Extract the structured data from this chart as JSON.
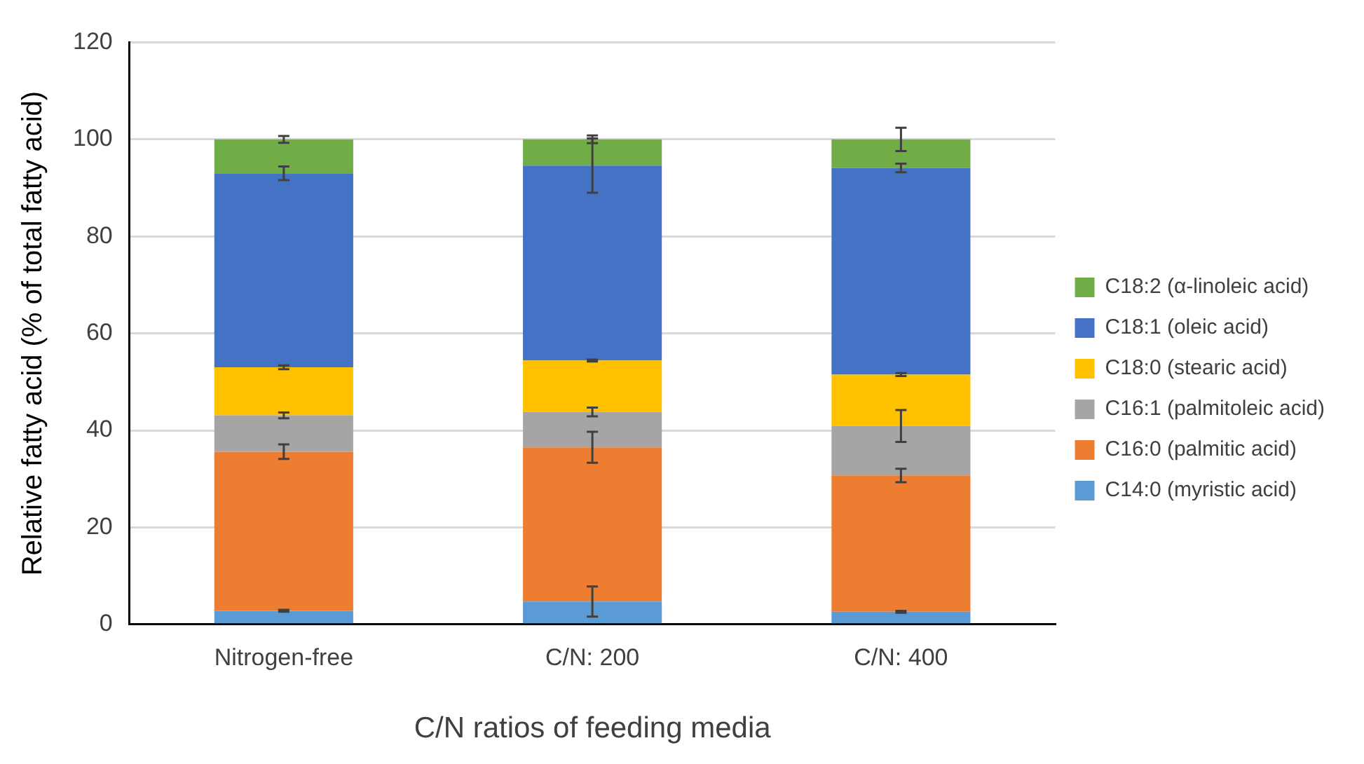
{
  "chart_data": {
    "type": "bar",
    "stacked": true,
    "xlabel": "C/N ratios of feeding media",
    "ylabel": "Relative fatty acid (% of total fatty acid)",
    "categories": [
      "Nitrogen-free",
      "C/N: 200",
      "C/N: 400"
    ],
    "ylim": [
      0,
      120
    ],
    "yticks": [
      0,
      20,
      40,
      60,
      80,
      100,
      120
    ],
    "grid": "y",
    "legend": "right",
    "series": [
      {
        "name": "C14:0 (myristic acid)",
        "color": "#5b9bd5",
        "values": [
          2.8,
          4.7,
          2.6
        ],
        "errors": [
          0.2,
          3.1,
          0.2
        ]
      },
      {
        "name": "C16:0 (palmitic acid)",
        "color": "#ed7d31",
        "values": [
          32.8,
          31.8,
          28.1
        ],
        "errors": [
          1.5,
          3.2,
          1.4
        ]
      },
      {
        "name": "C16:1 (palmitoleic acid)",
        "color": "#a5a5a5",
        "values": [
          7.5,
          7.3,
          10.2
        ],
        "errors": [
          0.6,
          0.9,
          3.3
        ]
      },
      {
        "name": "C18:0 (stearic acid)",
        "color": "#ffc000",
        "values": [
          9.9,
          10.6,
          10.6
        ],
        "errors": [
          0.4,
          0.2,
          0.3
        ]
      },
      {
        "name": "C18:1 (oleic acid)",
        "color": "#4472c4",
        "values": [
          40.0,
          40.2,
          42.6
        ],
        "errors": [
          1.4,
          5.6,
          0.9
        ]
      },
      {
        "name": "C18:2 (α-linoleic acid)",
        "color": "#70ad47",
        "values": [
          7.0,
          5.4,
          5.9
        ],
        "errors": [
          0.7,
          0.8,
          2.4
        ]
      }
    ]
  }
}
